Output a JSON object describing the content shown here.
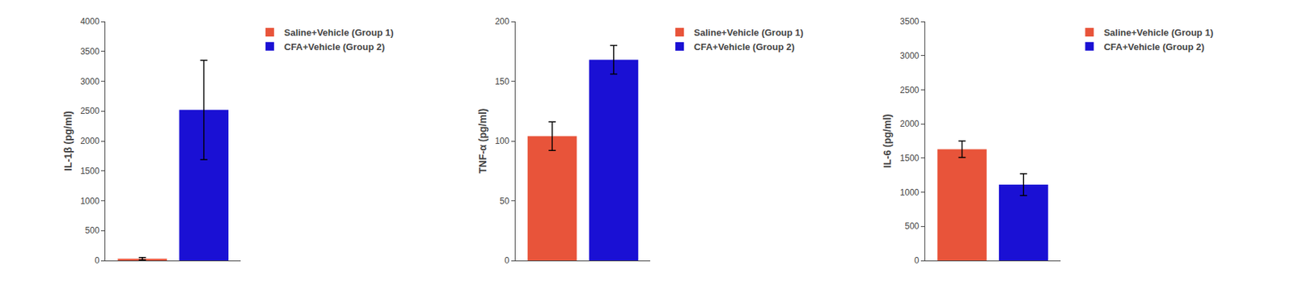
{
  "chart_data": [
    {
      "type": "bar",
      "ylabel": "IL-1β (pg/ml)",
      "ylim": [
        0,
        4000
      ],
      "yticks": [
        0,
        500,
        1000,
        1500,
        2000,
        2500,
        3000,
        3500,
        4000
      ],
      "series": [
        {
          "name": "Saline+Vehicle (Group 1)",
          "color": "#E8543A",
          "values": [
            30
          ],
          "errors": [
            20
          ]
        },
        {
          "name": "CFA+Vehicle (Group 2)",
          "color": "#1A10D4",
          "values": [
            2520
          ],
          "errors": [
            830
          ]
        }
      ],
      "legend": "upper right",
      "grid": false,
      "tick_labels": "y"
    },
    {
      "type": "bar",
      "ylabel": "TNF-α (pg/ml)",
      "ylim": [
        0,
        200
      ],
      "yticks": [
        0,
        50,
        100,
        150,
        200
      ],
      "series": [
        {
          "name": "Saline+Vehicle (Group 1)",
          "color": "#E8543A",
          "values": [
            104
          ],
          "errors": [
            12
          ]
        },
        {
          "name": "CFA+Vehicle (Group 2)",
          "color": "#1A10D4",
          "values": [
            168
          ],
          "errors": [
            12
          ]
        }
      ],
      "legend": "upper right",
      "grid": false,
      "tick_labels": "y"
    },
    {
      "type": "bar",
      "ylabel": "IL-6 (pg/ml)",
      "ylim": [
        0,
        3500
      ],
      "yticks": [
        0,
        500,
        1000,
        1500,
        2000,
        2500,
        3000,
        3500
      ],
      "series": [
        {
          "name": "Saline+Vehicle (Group 1)",
          "color": "#E8543A",
          "values": [
            1630
          ],
          "errors": [
            120
          ]
        },
        {
          "name": "CFA+Vehicle (Group 2)",
          "color": "#1A10D4",
          "values": [
            1110
          ],
          "errors": [
            160
          ]
        }
      ],
      "legend": "upper right",
      "grid": false,
      "tick_labels": "y"
    }
  ]
}
